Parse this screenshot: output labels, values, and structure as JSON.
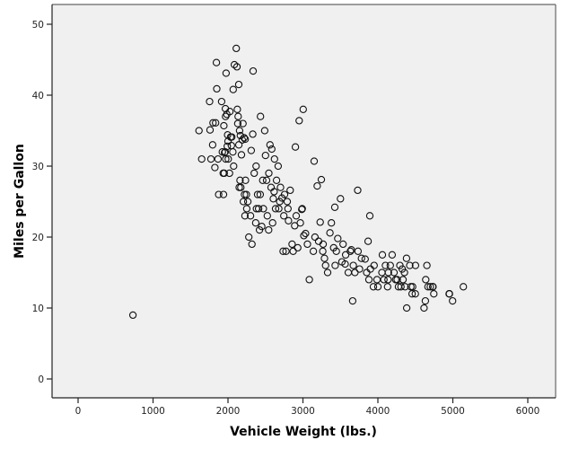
{
  "chart_data": {
    "type": "scatter",
    "title": "",
    "xlabel": "Vehicle Weight (lbs.)",
    "ylabel": "Miles per Gallon",
    "xlim": [
      -350,
      6350
    ],
    "ylim": [
      -2.5,
      52.5
    ],
    "xticks": [
      0,
      1000,
      2000,
      3000,
      4000,
      5000,
      6000
    ],
    "yticks": [
      0,
      10,
      20,
      30,
      40,
      50
    ],
    "grid": false,
    "legend": null,
    "background": "#f0f0f0",
    "marker": "open-circle",
    "points": [
      [
        732,
        9
      ],
      [
        1613,
        35
      ],
      [
        1649,
        31
      ],
      [
        1755,
        39.1
      ],
      [
        1760,
        35.1
      ],
      [
        1773,
        31
      ],
      [
        1795,
        33
      ],
      [
        1800,
        36.1
      ],
      [
        1825,
        29.8
      ],
      [
        1835,
        36.1
      ],
      [
        1845,
        44.6
      ],
      [
        1850,
        40.9
      ],
      [
        1867,
        31
      ],
      [
        1875,
        26
      ],
      [
        1915,
        39.1
      ],
      [
        1925,
        32
      ],
      [
        1937,
        29
      ],
      [
        1940,
        26
      ],
      [
        1945,
        35.7
      ],
      [
        1950,
        29
      ],
      [
        1955,
        31.9
      ],
      [
        1963,
        32
      ],
      [
        1965,
        38.1
      ],
      [
        1968,
        37
      ],
      [
        1970,
        31
      ],
      [
        1975,
        43.1
      ],
      [
        1985,
        37.3
      ],
      [
        1990,
        32.8
      ],
      [
        1995,
        34.4
      ],
      [
        2000,
        33.5
      ],
      [
        2003,
        31
      ],
      [
        2020,
        29
      ],
      [
        2025,
        37.7
      ],
      [
        2035,
        34.1
      ],
      [
        2045,
        32.9
      ],
      [
        2050,
        34.1
      ],
      [
        2065,
        32
      ],
      [
        2070,
        40.8
      ],
      [
        2075,
        30
      ],
      [
        2085,
        44.3
      ],
      [
        2110,
        46.6
      ],
      [
        2120,
        44
      ],
      [
        2125,
        38
      ],
      [
        2130,
        36
      ],
      [
        2135,
        37
      ],
      [
        2144,
        41.5
      ],
      [
        2145,
        33
      ],
      [
        2150,
        27
      ],
      [
        2155,
        35
      ],
      [
        2160,
        28
      ],
      [
        2165,
        34.3
      ],
      [
        2171,
        27
      ],
      [
        2180,
        31.6
      ],
      [
        2190,
        33.7
      ],
      [
        2200,
        36
      ],
      [
        2205,
        25
      ],
      [
        2215,
        34
      ],
      [
        2220,
        26
      ],
      [
        2226,
        23
      ],
      [
        2230,
        33.8
      ],
      [
        2234,
        28
      ],
      [
        2245,
        26
      ],
      [
        2250,
        24
      ],
      [
        2265,
        25
      ],
      [
        2278,
        20
      ],
      [
        2300,
        23
      ],
      [
        2310,
        32.2
      ],
      [
        2320,
        19
      ],
      [
        2330,
        34.5
      ],
      [
        2335,
        43.4
      ],
      [
        2350,
        29
      ],
      [
        2370,
        22
      ],
      [
        2375,
        30
      ],
      [
        2380,
        24
      ],
      [
        2395,
        26
      ],
      [
        2408,
        24
      ],
      [
        2420,
        21
      ],
      [
        2430,
        26
      ],
      [
        2434,
        37
      ],
      [
        2450,
        21.5
      ],
      [
        2464,
        28
      ],
      [
        2472,
        24
      ],
      [
        2490,
        35
      ],
      [
        2500,
        31.5
      ],
      [
        2515,
        28
      ],
      [
        2525,
        23
      ],
      [
        2542,
        21
      ],
      [
        2545,
        29
      ],
      [
        2560,
        33
      ],
      [
        2575,
        27
      ],
      [
        2585,
        32.4
      ],
      [
        2595,
        22
      ],
      [
        2605,
        25.4
      ],
      [
        2615,
        26.4
      ],
      [
        2620,
        31
      ],
      [
        2635,
        24
      ],
      [
        2648,
        28
      ],
      [
        2670,
        30
      ],
      [
        2678,
        24
      ],
      [
        2690,
        25
      ],
      [
        2700,
        27
      ],
      [
        2720,
        25.5
      ],
      [
        2735,
        18
      ],
      [
        2745,
        23
      ],
      [
        2755,
        26
      ],
      [
        2774,
        18
      ],
      [
        2790,
        25
      ],
      [
        2800,
        24
      ],
      [
        2807,
        22.3
      ],
      [
        2830,
        26.6
      ],
      [
        2855,
        19
      ],
      [
        2870,
        18
      ],
      [
        2890,
        21.6
      ],
      [
        2900,
        32.7
      ],
      [
        2910,
        23
      ],
      [
        2930,
        18.5
      ],
      [
        2950,
        36.4
      ],
      [
        2965,
        22
      ],
      [
        2984,
        23.9
      ],
      [
        2990,
        24
      ],
      [
        3003,
        38
      ],
      [
        3012,
        20.2
      ],
      [
        3035,
        20.5
      ],
      [
        3060,
        19
      ],
      [
        3085,
        14
      ],
      [
        3139,
        18
      ],
      [
        3150,
        30.7
      ],
      [
        3160,
        20
      ],
      [
        3190,
        27.2
      ],
      [
        3210,
        19.4
      ],
      [
        3230,
        22.1
      ],
      [
        3245,
        28.1
      ],
      [
        3265,
        18
      ],
      [
        3270,
        19
      ],
      [
        3288,
        17
      ],
      [
        3302,
        16
      ],
      [
        3329,
        15
      ],
      [
        3360,
        20.6
      ],
      [
        3380,
        22
      ],
      [
        3410,
        18.5
      ],
      [
        3425,
        24.2
      ],
      [
        3430,
        16
      ],
      [
        3445,
        18
      ],
      [
        3465,
        19.8
      ],
      [
        3500,
        25.4
      ],
      [
        3520,
        16.5
      ],
      [
        3535,
        19
      ],
      [
        3563,
        16.2
      ],
      [
        3570,
        17.5
      ],
      [
        3605,
        15
      ],
      [
        3632,
        18
      ],
      [
        3645,
        18.2
      ],
      [
        3664,
        11
      ],
      [
        3672,
        16
      ],
      [
        3693,
        15
      ],
      [
        3730,
        26.6
      ],
      [
        3735,
        18
      ],
      [
        3755,
        15.5
      ],
      [
        3781,
        17
      ],
      [
        3830,
        16.9
      ],
      [
        3850,
        15
      ],
      [
        3870,
        19.4
      ],
      [
        3880,
        14
      ],
      [
        3892,
        23
      ],
      [
        3900,
        15.5
      ],
      [
        3940,
        13
      ],
      [
        3950,
        16
      ],
      [
        3988,
        14
      ],
      [
        4000,
        13
      ],
      [
        4054,
        15
      ],
      [
        4060,
        17.5
      ],
      [
        4080,
        14
      ],
      [
        4100,
        16
      ],
      [
        4129,
        13
      ],
      [
        4135,
        14
      ],
      [
        4140,
        15
      ],
      [
        4165,
        16
      ],
      [
        4190,
        17.5
      ],
      [
        4215,
        15
      ],
      [
        4237,
        14
      ],
      [
        4257,
        14
      ],
      [
        4274,
        13
      ],
      [
        4294,
        16
      ],
      [
        4308,
        13
      ],
      [
        4325,
        15.5
      ],
      [
        4335,
        14
      ],
      [
        4354,
        15
      ],
      [
        4363,
        13
      ],
      [
        4382,
        17
      ],
      [
        4385,
        10
      ],
      [
        4425,
        16
      ],
      [
        4440,
        13
      ],
      [
        4456,
        12
      ],
      [
        4464,
        13
      ],
      [
        4499,
        12
      ],
      [
        4502,
        16
      ],
      [
        4615,
        10
      ],
      [
        4633,
        11
      ],
      [
        4638,
        14
      ],
      [
        4654,
        16
      ],
      [
        4668,
        13
      ],
      [
        4699,
        13
      ],
      [
        4732,
        13
      ],
      [
        4735,
        13
      ],
      [
        4746,
        12
      ],
      [
        4951,
        12
      ],
      [
        4955,
        12
      ],
      [
        4997,
        11
      ],
      [
        5140,
        13
      ]
    ]
  }
}
